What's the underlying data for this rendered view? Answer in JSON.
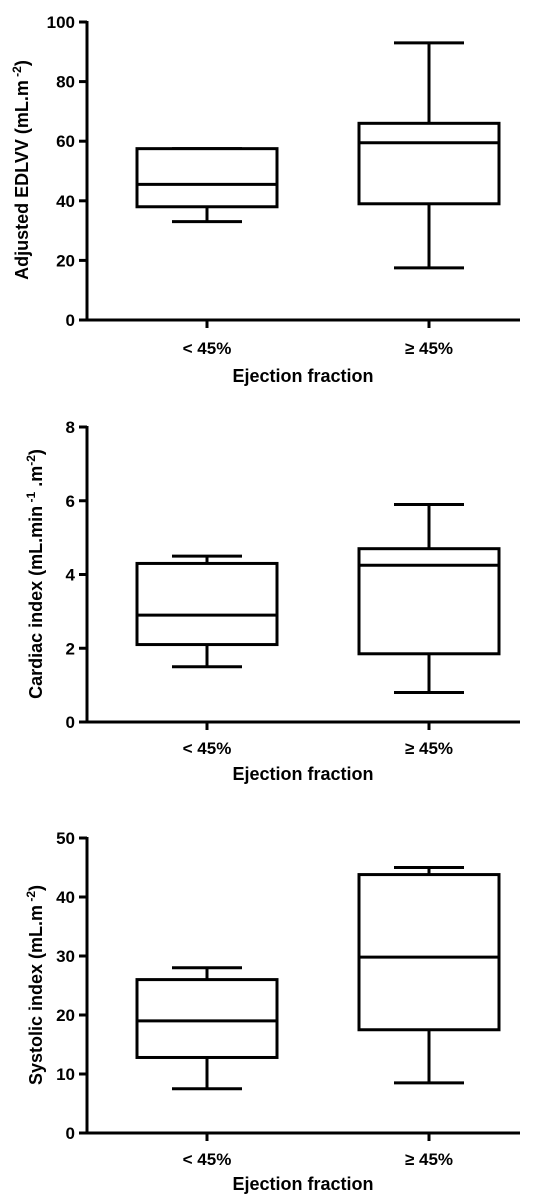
{
  "chart_data": [
    {
      "type": "box",
      "xlabel": "Ejection fraction",
      "ylabel": "Adjusted EDLVV (mL.m",
      "ylabel_sup": "-2",
      "ylabel_close": ")",
      "ylim": [
        0,
        100
      ],
      "yticks": [
        0,
        20,
        40,
        60,
        80,
        100
      ],
      "categories": [
        "< 45%",
        "≥ 45%"
      ],
      "boxes": [
        {
          "min": 33,
          "q1": 38,
          "median": 45.5,
          "q3": 57.5,
          "max": 57.5
        },
        {
          "min": 17.5,
          "q1": 39,
          "median": 59.5,
          "q3": 66,
          "max": 93
        }
      ]
    },
    {
      "type": "box",
      "xlabel": "Ejection fraction",
      "ylabel": "Cardiac index (mL.min",
      "ylabel_sup": "-1",
      "ylabel_mid": ".m",
      "ylabel_sup2": "-2",
      "ylabel_close": ")",
      "ylim": [
        0,
        8
      ],
      "yticks": [
        0,
        2,
        4,
        6,
        8
      ],
      "categories": [
        "< 45%",
        "≥ 45%"
      ],
      "boxes": [
        {
          "min": 1.5,
          "q1": 2.1,
          "median": 2.9,
          "q3": 4.3,
          "max": 4.5
        },
        {
          "min": 0.8,
          "q1": 1.85,
          "median": 4.25,
          "q3": 4.7,
          "max": 5.9
        }
      ]
    },
    {
      "type": "box",
      "xlabel": "Ejection fraction",
      "ylabel": "Systolic index (mL.m",
      "ylabel_sup": "-2",
      "ylabel_close": ")",
      "ylim": [
        0,
        50
      ],
      "yticks": [
        0,
        10,
        20,
        30,
        40,
        50
      ],
      "categories": [
        "< 45%",
        "≥ 45%"
      ],
      "boxes": [
        {
          "min": 7.5,
          "q1": 12.8,
          "median": 19,
          "q3": 26,
          "max": 28
        },
        {
          "min": 8.5,
          "q1": 17.5,
          "median": 29.8,
          "q3": 43.8,
          "max": 45
        }
      ]
    }
  ]
}
